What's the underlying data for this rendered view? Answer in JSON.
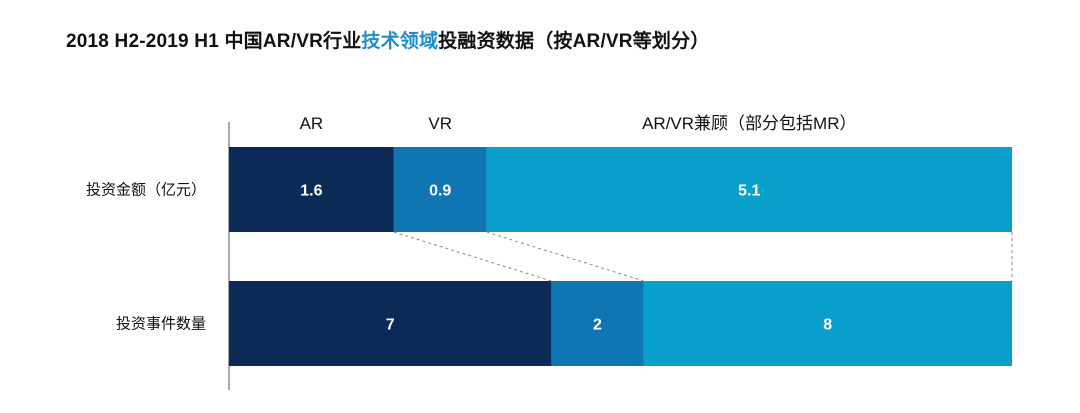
{
  "title": {
    "part1": "2018 H2-2019 H1 中国AR/VR行业",
    "highlight": "技术领域",
    "part2": "投融资数据（按AR/VR等划分）"
  },
  "chart_data": {
    "type": "bar",
    "stacked": "100%",
    "orientation": "horizontal",
    "categories": [
      "投资金额（亿元）",
      "投资事件数量"
    ],
    "series": [
      {
        "name": "AR",
        "values": [
          1.6,
          7
        ],
        "color": "#0b2a57"
      },
      {
        "name": "VR",
        "values": [
          0.9,
          2
        ],
        "color": "#0f75b3"
      },
      {
        "name": "AR/VR兼顾（部分包括MR）",
        "values": [
          5.1,
          8
        ],
        "color": "#0aa0cc"
      }
    ],
    "legend_position": "top",
    "grid": false
  }
}
